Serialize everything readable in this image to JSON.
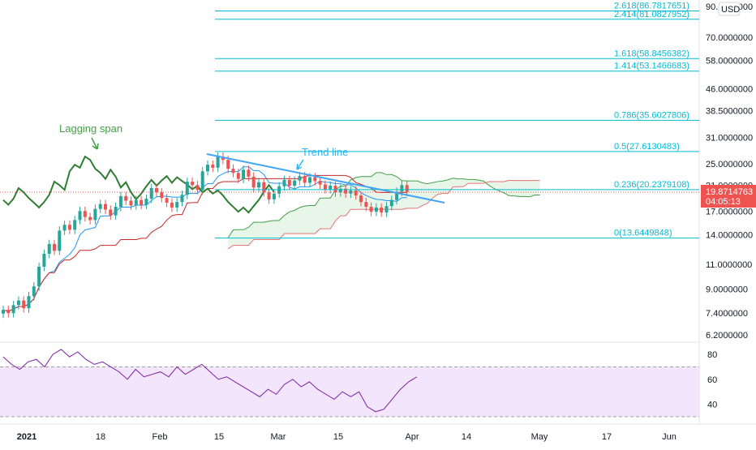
{
  "chart_data": {
    "type": "candlestick",
    "currency_badge": "USD",
    "price_axis": {
      "scale": "log",
      "ticks": [
        "90.0000000",
        "70.0000000",
        "58.0000000",
        "46.0000000",
        "38.5000000",
        "31.0000000",
        "25.0000000",
        "21.0000000",
        "17.0000000",
        "14.0000000",
        "11.0000000",
        "9.0000000",
        "7.4000000",
        "6.2000000"
      ],
      "last_price": "19.8714763",
      "countdown": "04:05:13"
    },
    "rsi_axis": {
      "ticks": [
        "80",
        "60",
        "40"
      ],
      "band_upper": 70,
      "band_lower": 30
    },
    "x_ticks": [
      "2021",
      "18",
      "Feb",
      "15",
      "Mar",
      "15",
      "Apr",
      "14",
      "May",
      "17",
      "Jun"
    ],
    "fib_levels": [
      {
        "label": "2.618(86.7817651)",
        "value": 86.78
      },
      {
        "label": "2.414(81.0827952)",
        "value": 81.08
      },
      {
        "label": "1.618(58.8456382)",
        "value": 58.85
      },
      {
        "label": "1.414(53.1466683)",
        "value": 53.15
      },
      {
        "label": "0.786(35.6027806)",
        "value": 35.6
      },
      {
        "label": "0.5(27.6130483)",
        "value": 27.61
      },
      {
        "label": "0.236(20.2379108)",
        "value": 20.24
      },
      {
        "label": "0(13.6449848)",
        "value": 13.64
      }
    ],
    "annotations": {
      "lagging_span": "Lagging span",
      "trend_line": "Trend line"
    },
    "colors": {
      "up": "#26a69a",
      "down": "#ef5350",
      "fib": "#00bcd4",
      "lagging": "#2e7d32",
      "conversion": "#2196f3",
      "base": "#c62828",
      "cloud_fill": "#e8f5e9",
      "rsi_line": "#7b1fa2",
      "rsi_band": "#f3e5fc",
      "trend": "#42a5f5",
      "price_tag": "#ef5350"
    }
  }
}
